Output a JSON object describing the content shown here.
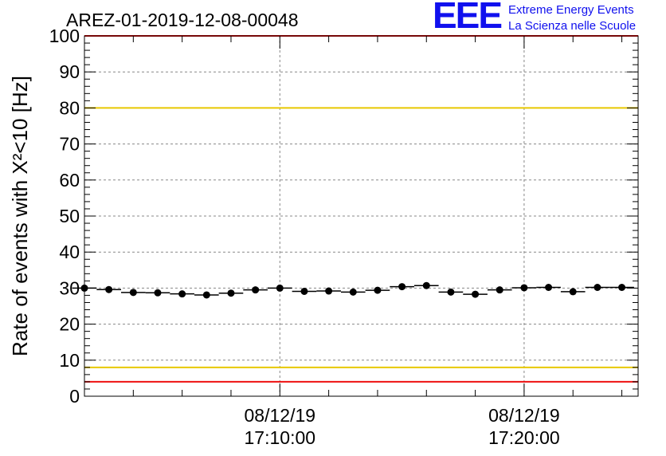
{
  "chart_data": {
    "type": "scatter",
    "title": "AREZ-01-2019-12-08-00048",
    "ylabel": "Rate of events with X²<10 [Hz]",
    "xlabel": "",
    "ylim": [
      0,
      100
    ],
    "y_ticks": [
      0,
      10,
      20,
      30,
      40,
      50,
      60,
      70,
      80,
      90,
      100
    ],
    "x_tick_labels": [
      {
        "date": "08/12/19",
        "time": "17:10:00"
      },
      {
        "date": "08/12/19",
        "time": "17:20:00"
      }
    ],
    "xlim": [
      "17:02:00",
      "17:24:40"
    ],
    "grid": true,
    "reference_lines": [
      {
        "y": 100,
        "color": "#ee1111"
      },
      {
        "y": 80,
        "color": "#e8c800"
      },
      {
        "y": 8,
        "color": "#e8c800"
      },
      {
        "y": 4,
        "color": "#ee1111"
      }
    ],
    "series": [
      {
        "color": "#000000",
        "x": [
          "17:02:00",
          "17:03:00",
          "17:04:00",
          "17:05:00",
          "17:06:00",
          "17:07:00",
          "17:08:00",
          "17:09:00",
          "17:10:00",
          "17:11:00",
          "17:12:00",
          "17:13:00",
          "17:14:00",
          "17:15:00",
          "17:16:00",
          "17:17:00",
          "17:18:00",
          "17:19:00",
          "17:20:00",
          "17:21:00",
          "17:22:00",
          "17:23:00",
          "17:24:00"
        ],
        "values": [
          30.0,
          29.6,
          28.8,
          28.7,
          28.4,
          28.1,
          28.6,
          29.5,
          30.0,
          29.1,
          29.2,
          28.9,
          29.4,
          30.4,
          30.7,
          28.9,
          28.3,
          29.5,
          30.1,
          30.2,
          29.0,
          30.2,
          30.2
        ]
      }
    ]
  },
  "logo": {
    "letters": "EEE",
    "line1": "Extreme Energy Events",
    "line2": "La Scienza nelle Scuole"
  }
}
